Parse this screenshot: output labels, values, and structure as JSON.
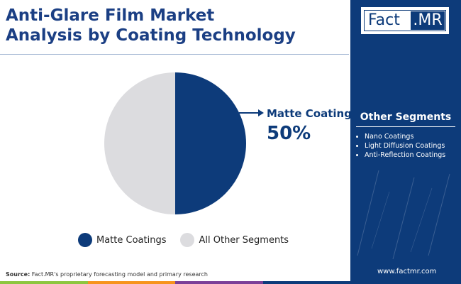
{
  "title": {
    "line1": "Anti-Glare Film Market",
    "line2": "Analysis by Coating Technology"
  },
  "chart_data": {
    "type": "pie",
    "title": "Anti-Glare Film Market Analysis by Coating Technology",
    "slices": [
      {
        "label": "Matte Coatings",
        "value": 50,
        "color": "#0d3b7a"
      },
      {
        "label": "All Other Segments",
        "value": 50,
        "color": "#dcdcdf"
      }
    ],
    "callout": {
      "label": "Matte Coatings",
      "value": "50%"
    },
    "legend_position": "bottom"
  },
  "legend": [
    {
      "label": "Matte Coatings",
      "color": "#0d3b7a"
    },
    {
      "label": "All Other Segments",
      "color": "#dcdcdf"
    }
  ],
  "source": {
    "prefix": "Source:",
    "text": " Fact.MR's proprietary forecasting model and primary research"
  },
  "sidebar": {
    "logo_fact": "Fact",
    "logo_mr": ".MR",
    "segments_title": "Other Segments",
    "segments": [
      "Nano Coatings",
      "Light Diffusion Coatings",
      "Anti-Reflection Coatings"
    ],
    "url": "www.factmr.com"
  },
  "colors": {
    "brand": "#0d3b7a",
    "other": "#dcdcdf",
    "bottom_bar": [
      "#8dc63f",
      "#f7941d",
      "#7b3f98",
      "#0d3b7a"
    ]
  }
}
